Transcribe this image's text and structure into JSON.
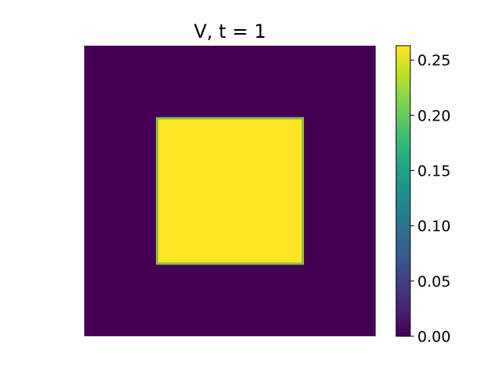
{
  "chart_data": {
    "type": "heatmap",
    "title": "V, t = 1",
    "colormap": "viridis",
    "axes_visible": false,
    "grid": false,
    "background_value": 0.0,
    "regions": [
      {
        "shape": "square",
        "x_range": [
          0.25,
          0.75
        ],
        "y_range": [
          0.25,
          0.75
        ],
        "value": 0.263
      }
    ],
    "colorbar": {
      "vmin": 0.0,
      "vmax": 0.263,
      "ticks": [
        0.0,
        0.05,
        0.1,
        0.15,
        0.2,
        0.25
      ],
      "tick_labels": [
        "0.00",
        "0.05",
        "0.10",
        "0.15",
        "0.20",
        "0.25"
      ],
      "position": "right"
    },
    "colors": {
      "low": "#440154",
      "high": "#fde725",
      "edge": "#8fbd48"
    }
  }
}
